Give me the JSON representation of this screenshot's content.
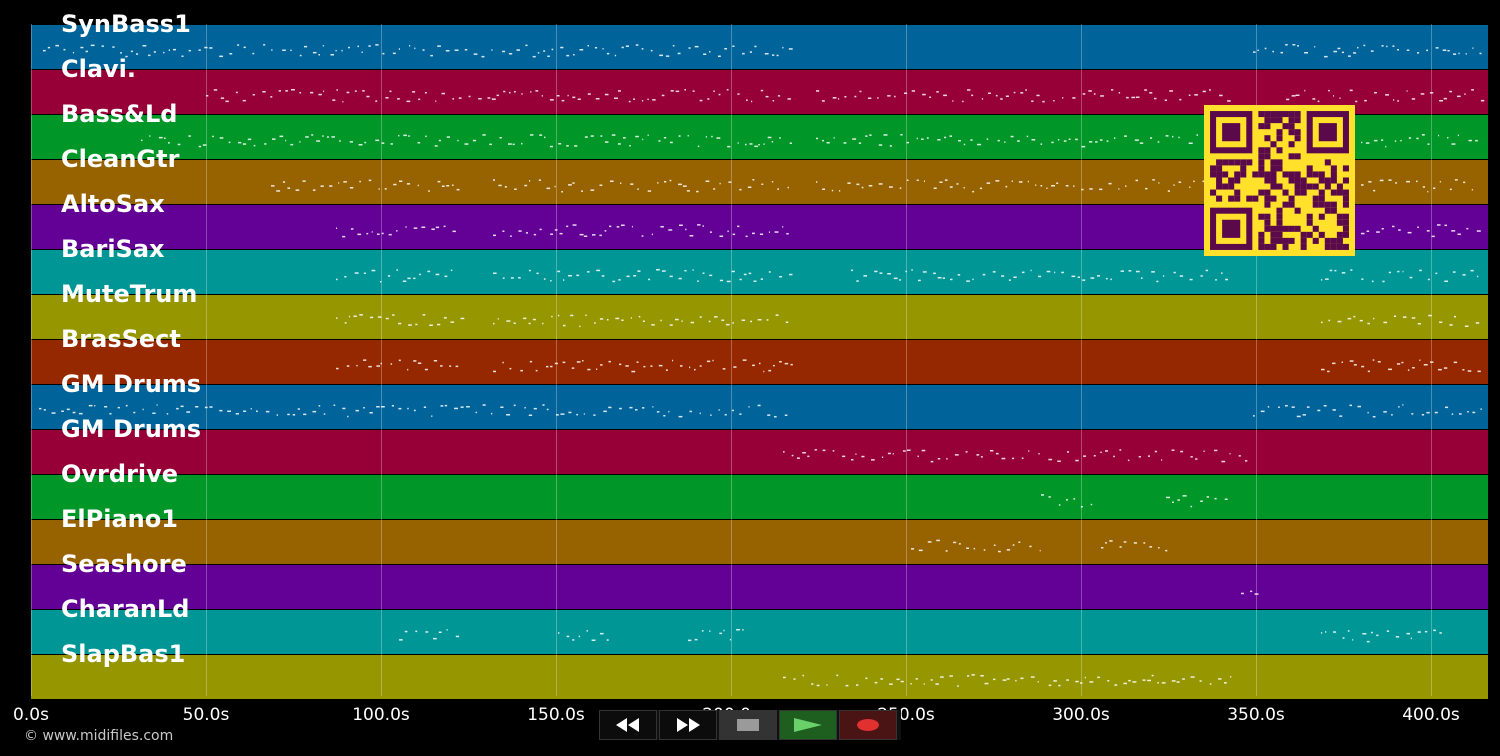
{
  "tracks": [
    {
      "name": "SynBass1",
      "color": "#00639a"
    },
    {
      "name": "Clavi.",
      "color": "#960037"
    },
    {
      "name": "Bass&Ld",
      "color": "#009628"
    },
    {
      "name": "CleanGtr",
      "color": "#966300"
    },
    {
      "name": "AltoSax",
      "color": "#630096"
    },
    {
      "name": "BariSax",
      "color": "#009696"
    },
    {
      "name": "MuteTrum",
      "color": "#969600"
    },
    {
      "name": "BrasSect",
      "color": "#962800"
    },
    {
      "name": "GM Drums",
      "color": "#00639a"
    },
    {
      "name": "GM Drums",
      "color": "#960037"
    },
    {
      "name": "Ovrdrive",
      "color": "#009628"
    },
    {
      "name": "ElPiano1",
      "color": "#966300"
    },
    {
      "name": "Seashore",
      "color": "#630096"
    },
    {
      "name": "CharanLd",
      "color": "#009696"
    },
    {
      "name": "SlapBas1",
      "color": "#969600"
    }
  ],
  "timeline": {
    "ticks": [
      "0.0s",
      "50.0s",
      "100.0s",
      "150.0s",
      "200.0s",
      "250.0s",
      "300.0s",
      "350.0s",
      "400.0s"
    ]
  },
  "footer": {
    "copyright": "© www.midifiles.com"
  },
  "transport": {
    "rewind_icon": "rewind-icon",
    "forward_icon": "fast-forward-icon",
    "stop_icon": "stop-icon",
    "play_icon": "play-icon",
    "record_icon": "record-icon"
  },
  "qr_code": {
    "color": "#ffe02a",
    "module_color": "#5a0a4a"
  }
}
